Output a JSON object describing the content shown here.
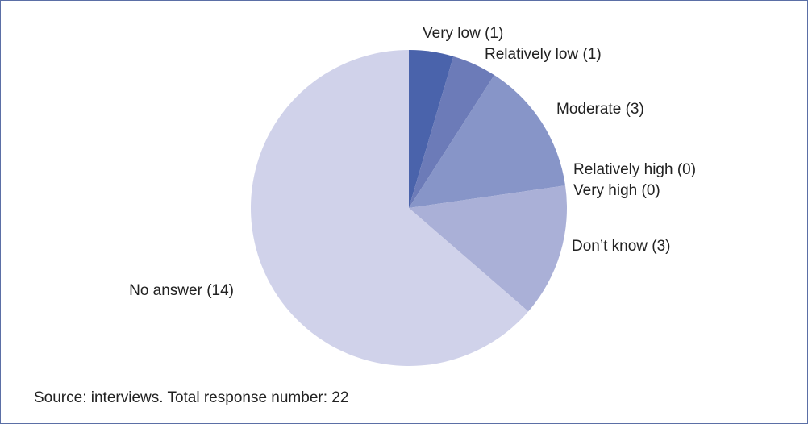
{
  "chart_data": {
    "type": "pie",
    "categories": [
      "Very low",
      "Relatively low",
      "Moderate",
      "Relatively high",
      "Very high",
      "Don’t know",
      "No answer"
    ],
    "values": [
      1,
      1,
      3,
      0,
      0,
      3,
      14
    ],
    "value_labels": [
      "(1)",
      "(1)",
      "(3)",
      "(0)",
      "(0)",
      "(3)",
      "(14)"
    ],
    "colors": [
      "#4a63ab",
      "#6c7bb8",
      "#8795c8",
      "#98a2cf",
      "#a0a8d3",
      "#aab0d7",
      "#d0d2ea"
    ],
    "source": "Source: interviews. Total response number: 22"
  }
}
